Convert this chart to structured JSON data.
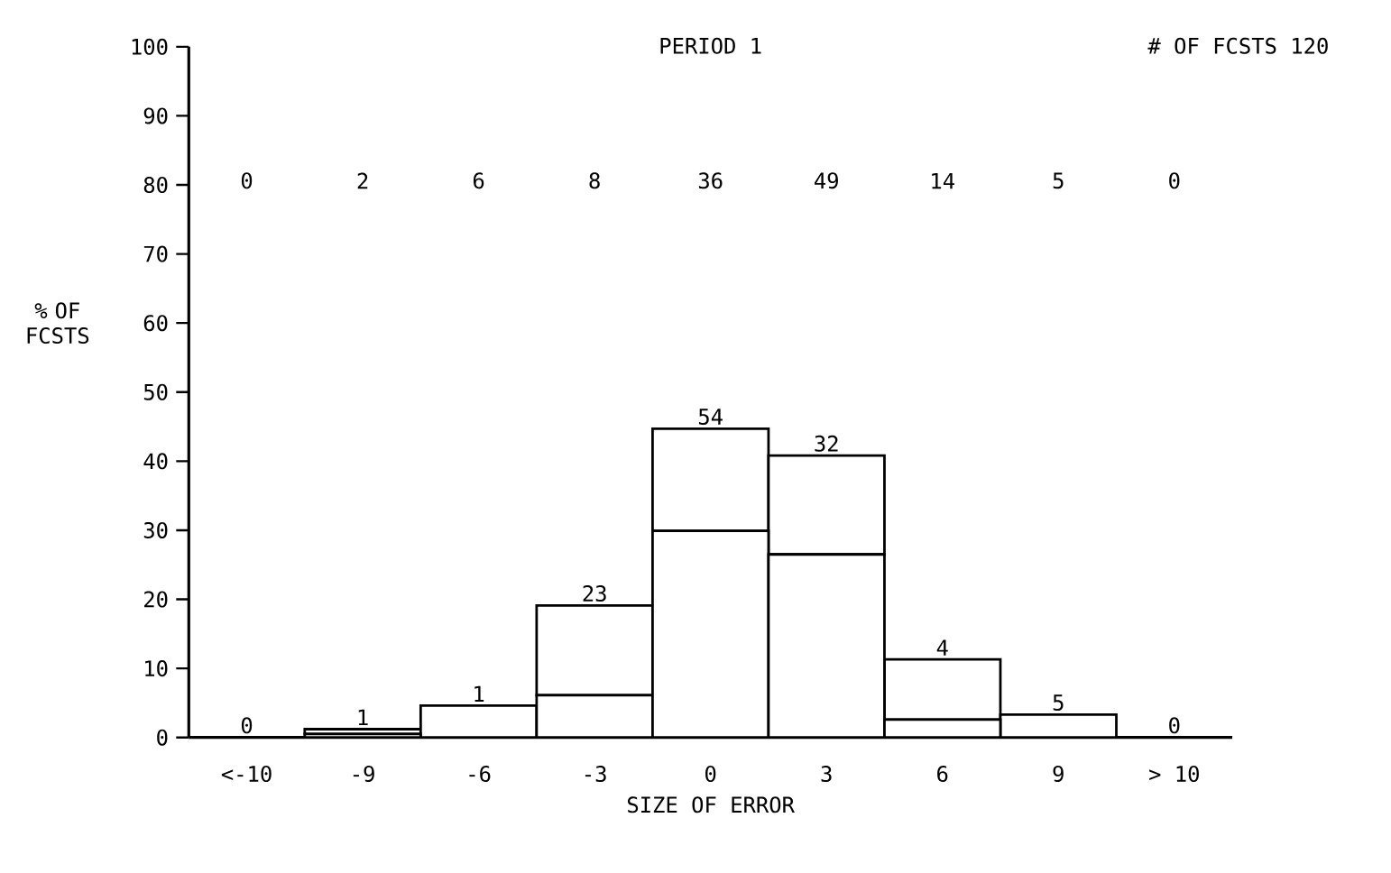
{
  "chart_data": {
    "type": "bar",
    "stacked": true,
    "title": "PERIOD 1",
    "xlabel": "SIZE OF ERROR",
    "ylabel": "% OF FCSTS",
    "categories": [
      "<-10",
      "-9",
      "-6",
      "-3",
      "0",
      "3",
      "6",
      "9",
      "> 10"
    ],
    "series": [
      {
        "color": "#000000",
        "values": [
          0,
          0.5,
          0,
          6.1,
          29.9,
          26.5,
          2.6,
          0,
          0
        ]
      },
      {
        "color": "#000000",
        "values": [
          0,
          0.7,
          4.6,
          13,
          14.8,
          14.3,
          8.7,
          3.3,
          0
        ]
      }
    ],
    "ylim": [
      0,
      100
    ],
    "yticks": [
      0,
      10,
      20,
      30,
      40,
      50,
      60,
      70,
      80,
      90,
      100
    ],
    "annotations": [
      "# OF FCSTS 120",
      "0",
      "2",
      "6",
      "8",
      "36",
      "49",
      "14",
      "5",
      "0",
      "0",
      "1",
      "1",
      "23",
      "54",
      "32",
      "4",
      "5",
      "0"
    ]
  }
}
